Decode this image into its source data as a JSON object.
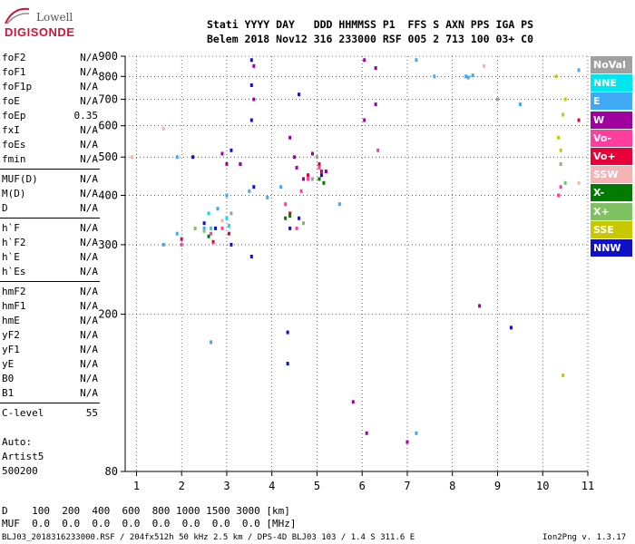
{
  "logo": {
    "top": "Lowell",
    "bottom": "DIGISONDE"
  },
  "header": {
    "line1": "Stati YYYY DAY   DDD HHMMSS P1  FFS S AXN PPS IGA PS",
    "line2": "Belem 2018 Nov12 316 233000 RSF 005 2 713 100 03+ C0"
  },
  "params": [
    {
      "name": "foF2",
      "value": "N/A"
    },
    {
      "name": "foF1",
      "value": "N/A"
    },
    {
      "name": "foF1p",
      "value": "N/A"
    },
    {
      "name": "foE",
      "value": "N/A"
    },
    {
      "name": "foEp",
      "value": "0.35"
    },
    {
      "name": "fxI",
      "value": "N/A"
    },
    {
      "name": "foEs",
      "value": "N/A"
    },
    {
      "name": "fmin",
      "value": "N/A"
    },
    {
      "name": "MUF(D)",
      "value": "N/A"
    },
    {
      "name": "M(D)",
      "value": "N/A"
    },
    {
      "name": "D",
      "value": "N/A"
    },
    {
      "name": "h`F",
      "value": "N/A"
    },
    {
      "name": "h`F2",
      "value": "N/A"
    },
    {
      "name": "h`E",
      "value": "N/A"
    },
    {
      "name": "h`Es",
      "value": "N/A"
    },
    {
      "name": "hmF2",
      "value": "N/A"
    },
    {
      "name": "hmF1",
      "value": "N/A"
    },
    {
      "name": "hmE",
      "value": "N/A"
    },
    {
      "name": "yF2",
      "value": "N/A"
    },
    {
      "name": "yF1",
      "value": "N/A"
    },
    {
      "name": "yE",
      "value": "N/A"
    },
    {
      "name": "B0",
      "value": "N/A"
    },
    {
      "name": "B1",
      "value": "N/A"
    },
    {
      "name": "C-level",
      "value": "55"
    }
  ],
  "auto": {
    "line1": "Auto:",
    "line2": "Artist5",
    "line3": "500200"
  },
  "footer": {
    "d_row": "D    100  200  400  600  800 1000 1500 3000 [km]",
    "muf_row": "MUF  0.0  0.0  0.0  0.0  0.0  0.0  0.0  0.0 [MHz]",
    "file_info": "BLJ03_2018316233000.RSF / 204fx512h 50 kHz 2.5 km / DPS-4D BLJ03 103 / 1.4 S 311.6 E",
    "version": "Ion2Png v. 1.3.17"
  },
  "legend": [
    {
      "label": "NoVal",
      "color": "#a0a0a0"
    },
    {
      "label": "NNE",
      "color": "#00e5ee"
    },
    {
      "label": "E",
      "color": "#3fa9f5"
    },
    {
      "label": "W",
      "color": "#a000a0"
    },
    {
      "label": "Vo-",
      "color": "#ff3ea0"
    },
    {
      "label": "Vo+",
      "color": "#e8003a"
    },
    {
      "label": "SSW",
      "color": "#f4b4b4"
    },
    {
      "label": "X-",
      "color": "#007a00"
    },
    {
      "label": "X+",
      "color": "#7fc060"
    },
    {
      "label": "SSE",
      "color": "#c8c800"
    },
    {
      "label": "NNW",
      "color": "#1010c8"
    }
  ],
  "chart_data": {
    "type": "scatter",
    "xlim": [
      0.75,
      11
    ],
    "ylim": [
      80,
      900
    ],
    "xticks": [
      "1",
      "2",
      "3",
      "4",
      "5",
      "6",
      "7",
      "8",
      "9",
      "10",
      "11"
    ],
    "yticks": [
      "80",
      "200",
      "300",
      "400",
      "500",
      "600",
      "700",
      "800",
      "900"
    ],
    "y_scale": "log",
    "grid": true,
    "series": [
      {
        "name": "NNW",
        "color": "#1010c8",
        "x": [
          2.25,
          2.5,
          2.75,
          3.1,
          3.3,
          3.55,
          3.55,
          3.55,
          3.6,
          4.35,
          4.35,
          4.4,
          4.6,
          5.1,
          3.1,
          3.55,
          4.6,
          9.3
        ],
        "y": [
          500,
          340,
          330,
          520,
          480,
          880,
          760,
          620,
          420,
          180,
          150,
          330,
          720,
          450,
          300,
          280,
          350,
          185
        ]
      },
      {
        "name": "W",
        "color": "#a000a0",
        "x": [
          2.9,
          3.0,
          3.3,
          3.6,
          3.6,
          4.4,
          4.5,
          4.55,
          4.7,
          5.2,
          6.05,
          6.05,
          6.3,
          6.3,
          8.6,
          7.0,
          4.9,
          5.8,
          6.1
        ],
        "y": [
          510,
          480,
          480,
          850,
          700,
          560,
          500,
          470,
          440,
          460,
          880,
          620,
          840,
          680,
          210,
          95,
          510,
          120,
          100
        ]
      },
      {
        "name": "E",
        "color": "#3fa9f5",
        "x": [
          1.6,
          1.9,
          2.5,
          2.8,
          3.0,
          3.5,
          3.9,
          4.2,
          5.5,
          7.2,
          7.6,
          8.3,
          8.35,
          8.45,
          9.5,
          10.8,
          7.2,
          1.9,
          2.65
        ],
        "y": [
          300,
          320,
          330,
          370,
          400,
          410,
          395,
          420,
          380,
          880,
          800,
          800,
          795,
          805,
          680,
          830,
          100,
          500,
          170
        ]
      },
      {
        "name": "Vo-",
        "color": "#ff3ea0",
        "x": [
          2.0,
          2.65,
          2.9,
          4.3,
          4.55,
          4.65,
          4.8,
          5.05,
          10.35,
          10.4,
          6.35
        ],
        "y": [
          300,
          320,
          330,
          380,
          330,
          410,
          440,
          470,
          400,
          420,
          520
        ]
      },
      {
        "name": "Vo+",
        "color": "#e8003a",
        "x": [
          2.0,
          2.7,
          3.05,
          4.4,
          4.8,
          5.05,
          5.1,
          10.8
        ],
        "y": [
          310,
          305,
          320,
          360,
          450,
          480,
          460,
          620
        ]
      },
      {
        "name": "X-",
        "color": "#007a00",
        "x": [
          2.6,
          4.3,
          4.4,
          5.05,
          5.15
        ],
        "y": [
          315,
          350,
          355,
          440,
          430
        ]
      },
      {
        "name": "X+",
        "color": "#7fc060",
        "x": [
          2.3,
          2.5,
          4.7,
          10.4,
          10.5
        ],
        "y": [
          330,
          325,
          340,
          480,
          430
        ]
      },
      {
        "name": "SSE",
        "color": "#c8c800",
        "x": [
          10.3,
          10.35,
          10.4,
          10.45,
          10.5,
          10.45
        ],
        "y": [
          800,
          560,
          520,
          640,
          700,
          140
        ]
      },
      {
        "name": "SSW",
        "color": "#f4b4b4",
        "x": [
          0.9,
          1.6,
          2.9,
          8.7,
          10.8
        ],
        "y": [
          500,
          590,
          345,
          850,
          430
        ]
      },
      {
        "name": "NNE",
        "color": "#00e5ee",
        "x": [
          2.65,
          3.05,
          3.0,
          2.6
        ],
        "y": [
          330,
          335,
          350,
          360
        ]
      },
      {
        "name": "NoVal",
        "color": "#a0a0a0",
        "x": [
          3.1,
          5.0,
          4.9,
          9.0
        ],
        "y": [
          360,
          500,
          440,
          700
        ]
      }
    ]
  }
}
